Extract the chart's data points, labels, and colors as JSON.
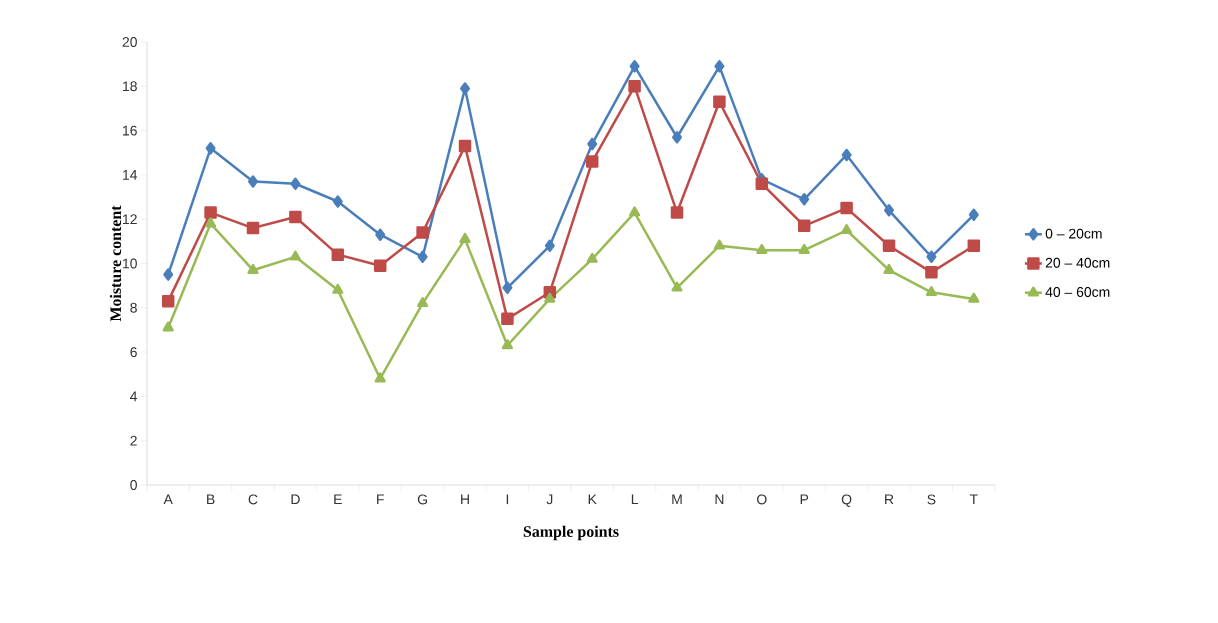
{
  "chart_data": {
    "type": "line",
    "xlabel": "Sample points",
    "ylabel": "Moisture content",
    "categories": [
      "A",
      "B",
      "C",
      "D",
      "E",
      "F",
      "G",
      "H",
      "I",
      "J",
      "K",
      "L",
      "M",
      "N",
      "O",
      "P",
      "Q",
      "R",
      "S",
      "T"
    ],
    "series": [
      {
        "name": "0 – 20cm",
        "color": "#4a7ebb",
        "marker": "diamond",
        "values": [
          9.5,
          15.2,
          13.7,
          13.6,
          12.8,
          11.3,
          10.3,
          17.9,
          8.9,
          10.8,
          15.4,
          18.9,
          15.7,
          18.9,
          13.8,
          12.9,
          14.9,
          12.4,
          10.3,
          12.2
        ]
      },
      {
        "name": "20 – 40cm",
        "color": "#be4b48",
        "marker": "square",
        "values": [
          8.3,
          12.3,
          11.6,
          12.1,
          10.4,
          9.9,
          11.4,
          15.3,
          7.5,
          8.7,
          14.6,
          18.0,
          12.3,
          17.3,
          13.6,
          11.7,
          12.5,
          10.8,
          9.6,
          10.8
        ]
      },
      {
        "name": "40 – 60cm",
        "color": "#98b954",
        "marker": "triangle",
        "values": [
          7.1,
          11.8,
          9.7,
          10.3,
          8.8,
          4.8,
          8.2,
          11.1,
          6.3,
          8.4,
          10.2,
          12.3,
          8.9,
          10.8,
          10.6,
          10.6,
          11.5,
          9.7,
          8.7,
          8.4
        ]
      }
    ],
    "ylim": [
      0,
      20
    ],
    "yticks": [
      0,
      2,
      4,
      6,
      8,
      10,
      12,
      14,
      16,
      18,
      20
    ],
    "grid": false,
    "legend": "right",
    "line_style": "solid"
  }
}
